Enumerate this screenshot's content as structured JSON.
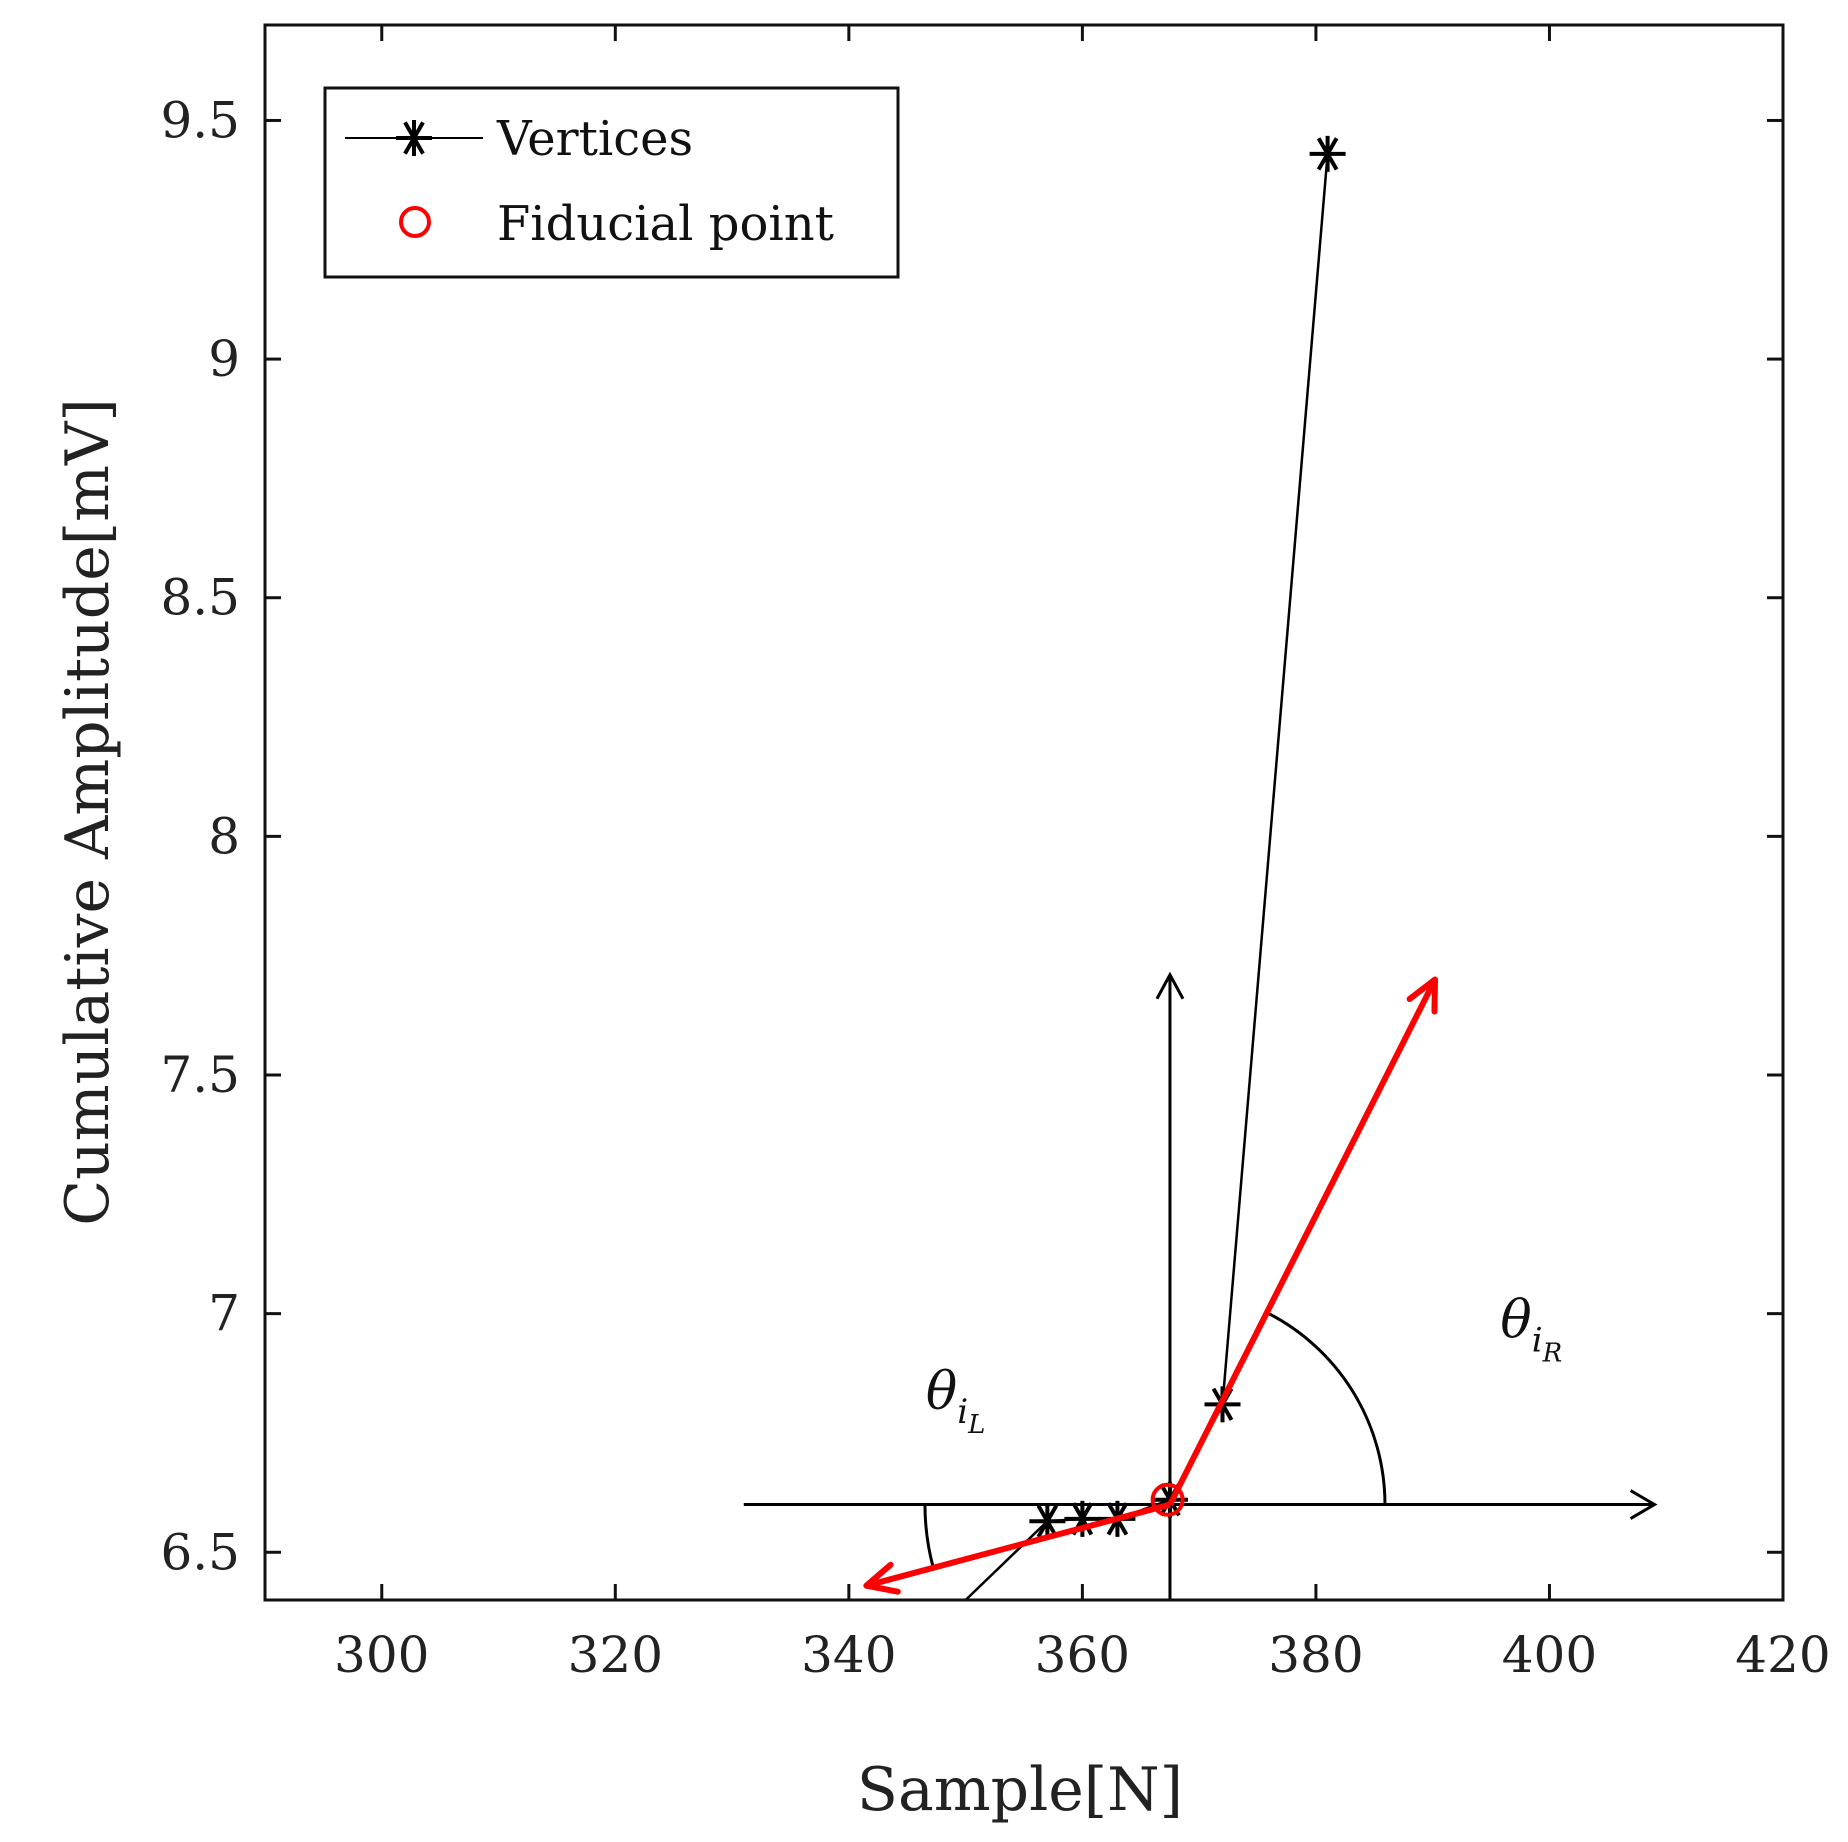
{
  "chart_data": {
    "type": "line",
    "xlabel": "Sample[N]",
    "ylabel": "Cumulative Amplitude[mV]",
    "xlim": [
      290,
      420
    ],
    "ylim": [
      6.4,
      9.7
    ],
    "xticks": [
      300,
      320,
      340,
      360,
      380,
      400,
      420
    ],
    "xtick_labels": [
      "300",
      "320",
      "340",
      "360",
      "380",
      "400",
      "420"
    ],
    "yticks": [
      6.5,
      7,
      7.5,
      8,
      8.5,
      9,
      9.5
    ],
    "ytick_labels": [
      "6.5",
      "7",
      "7.5",
      "8",
      "8.5",
      "9",
      "9.5"
    ],
    "series": [
      {
        "name": "Vertices",
        "color": "#000000",
        "marker": "asterisk",
        "x": [
          350,
          357,
          360,
          363,
          367.5,
          372,
          381
        ],
        "y": [
          6.4,
          6.565,
          6.57,
          6.57,
          6.61,
          6.81,
          9.43
        ],
        "marker_start_index": 1
      },
      {
        "name": "Fiducial point",
        "color": "#ff0000",
        "marker": "circle",
        "x": [
          367.3
        ],
        "y": [
          6.61
        ]
      }
    ],
    "annotations": {
      "origin": [
        367.5,
        6.6
      ],
      "horizontal_axis_x": [
        331,
        409
      ],
      "vertical_axis_y": [
        6.4,
        7.71
      ],
      "red_arrow_left_to": [
        341.5,
        6.43
      ],
      "red_arrow_right_to": [
        390.2,
        7.7
      ],
      "angle_left_label": {
        "base": "θ",
        "sub": "i",
        "subsub": "L",
        "x": 346.6,
        "y": 6.8
      },
      "angle_right_label": {
        "base": "θ",
        "sub": "i",
        "subsub": "R",
        "x": 395.8,
        "y": 6.95
      }
    },
    "legend": {
      "position": "top-left",
      "entries": [
        {
          "label": "Vertices",
          "color": "#000000",
          "marker": "asterisk"
        },
        {
          "label": "Fiducial point",
          "color": "#ff0000",
          "marker": "circle"
        }
      ]
    }
  }
}
